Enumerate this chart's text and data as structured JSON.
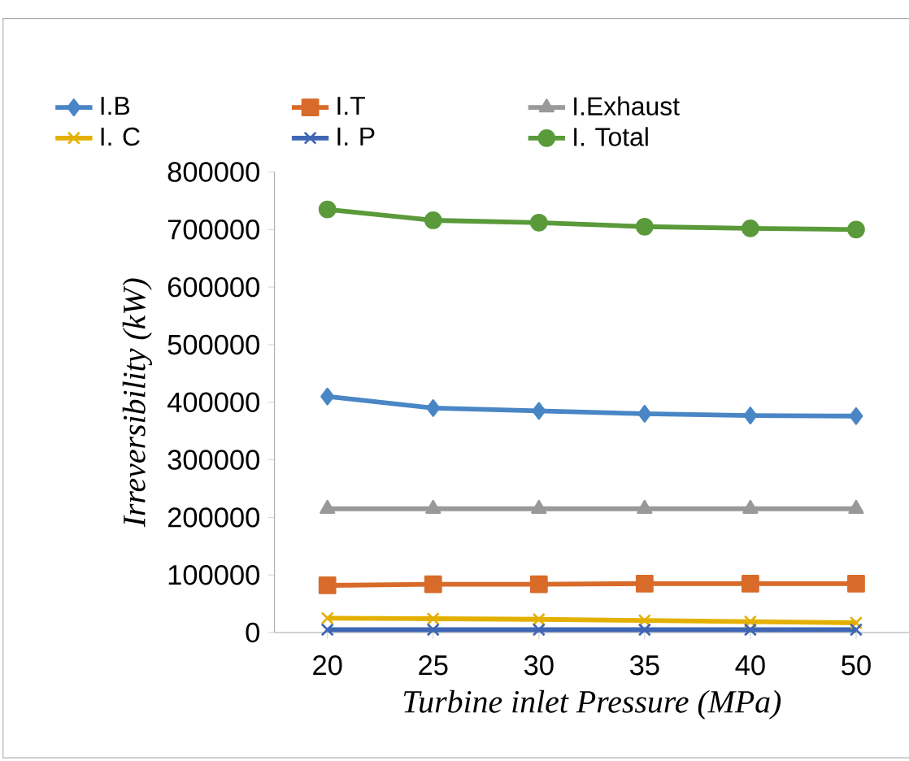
{
  "chart_data": {
    "type": "line",
    "xlabel": "Turbine inlet Pressure (MPa)",
    "ylabel": "Irreversibility (kW)",
    "categories": [
      "20",
      "25",
      "30",
      "35",
      "40",
      "50"
    ],
    "ylim": [
      0,
      800000
    ],
    "yticks": [
      0,
      100000,
      200000,
      300000,
      400000,
      500000,
      600000,
      700000,
      800000
    ],
    "grid": false,
    "legend": "top",
    "series": [
      {
        "name": "I.B",
        "color": "#4a86c5",
        "marker": "diamond",
        "values": [
          410000,
          390000,
          385000,
          380000,
          377000,
          376000
        ]
      },
      {
        "name": "I.T",
        "color": "#d86b2a",
        "marker": "square",
        "values": [
          82000,
          84000,
          84000,
          85000,
          85000,
          85000
        ]
      },
      {
        "name": "I.Exhaust",
        "color": "#999999",
        "marker": "triangle",
        "values": [
          215000,
          215000,
          215000,
          215000,
          215000,
          215000
        ]
      },
      {
        "name": "I. C",
        "color": "#e4b000",
        "marker": "cross",
        "values": [
          25000,
          24000,
          23000,
          21000,
          19000,
          17000
        ]
      },
      {
        "name": "I. P",
        "color": "#3f66b5",
        "marker": "cross",
        "values": [
          5000,
          5000,
          5000,
          5000,
          5000,
          5000
        ]
      },
      {
        "name": "I. Total",
        "color": "#5a9a3a",
        "marker": "circle",
        "values": [
          735000,
          716000,
          712000,
          705000,
          702000,
          700000
        ]
      }
    ]
  }
}
